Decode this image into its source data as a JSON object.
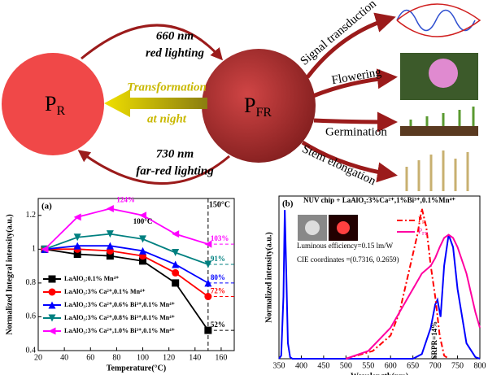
{
  "diagram": {
    "nodes": [
      {
        "main": "P",
        "sub": "R"
      },
      {
        "main": "P",
        "sub": "FR"
      }
    ],
    "transitions": [
      {
        "line1": "660 nm",
        "line2": "red lighting"
      },
      {
        "line1": "Transformation",
        "line2": "at night"
      },
      {
        "line1": "730 nm",
        "line2": "far-red lighting"
      }
    ],
    "outputs": [
      "Signal transduction",
      "Flowering",
      "Germination",
      "Stem elongation"
    ]
  },
  "chart_data": [
    {
      "type": "line",
      "label": "(a)",
      "xlabel": "Temperature(°C)",
      "ylabel": "Normalized Integral intensity(a.u.)",
      "xlim": [
        20,
        170
      ],
      "ylim": [
        0.4,
        1.3
      ],
      "xticks": [
        20,
        40,
        60,
        80,
        100,
        120,
        140,
        160
      ],
      "yticks": [
        0.4,
        0.6,
        0.8,
        1.0,
        1.2
      ],
      "vline": {
        "x": 150,
        "label": "150°C"
      },
      "annotations": [
        {
          "x": 100,
          "text": "100°C"
        }
      ],
      "series": [
        {
          "name": "LaAlO₃:0.1% Mn⁴⁺",
          "color": "#000000",
          "marker": "square",
          "x": [
            25,
            50,
            75,
            100,
            125,
            150
          ],
          "values": [
            1.0,
            0.97,
            0.96,
            0.93,
            0.8,
            0.52
          ],
          "value_labels": [
            null,
            null,
            null,
            null,
            null,
            "52%"
          ]
        },
        {
          "name": "LaAlO₃:3% Ca²⁺,0.1% Mn⁴⁺",
          "color": "#ff0000",
          "marker": "circle",
          "x": [
            25,
            50,
            75,
            100,
            125,
            150
          ],
          "values": [
            1.0,
            1.0,
            0.99,
            0.96,
            0.86,
            0.72
          ],
          "value_labels": [
            null,
            null,
            null,
            null,
            null,
            "72%"
          ]
        },
        {
          "name": "LaAlO₃:3% Ca²⁺,0.6% Bi³⁺,0.1% Mn⁴⁺",
          "color": "#0000ff",
          "marker": "triangle-up",
          "x": [
            25,
            50,
            75,
            100,
            125,
            150
          ],
          "values": [
            1.0,
            1.02,
            1.02,
            0.99,
            0.91,
            0.8
          ],
          "value_labels": [
            null,
            null,
            null,
            null,
            null,
            "80%"
          ]
        },
        {
          "name": "LaAlO₃:3% Ca²⁺,0.8% Bi³⁺,0.1% Mn⁴⁺",
          "color": "#008080",
          "marker": "triangle-down",
          "x": [
            25,
            50,
            75,
            100,
            125,
            150
          ],
          "values": [
            1.0,
            1.07,
            1.09,
            1.06,
            0.98,
            0.91
          ],
          "value_labels": [
            null,
            null,
            null,
            null,
            null,
            "91%"
          ]
        },
        {
          "name": "LaAlO₃:3% Ca²⁺,1.0% Bi³⁺,0.1% Mn⁴⁺",
          "color": "#ff00ff",
          "marker": "triangle-left",
          "x": [
            25,
            50,
            75,
            100,
            125,
            150
          ],
          "values": [
            1.0,
            1.19,
            1.24,
            1.2,
            1.09,
            1.03
          ],
          "value_labels": [
            null,
            null,
            "124%",
            null,
            null,
            "103%"
          ]
        }
      ]
    },
    {
      "type": "line",
      "label": "(b)",
      "title": "NUV chip + LaAlO₃:3%Ca²⁺,1%Bi³⁺,0.1%Mn⁴⁺",
      "xlabel": "Wavelength(nm)",
      "ylabel": "Normalized intensity(a.u.)",
      "xlim": [
        350,
        800
      ],
      "ylim": [
        0,
        1.05
      ],
      "xticks": [
        350,
        400,
        450,
        500,
        550,
        600,
        650,
        700,
        750,
        800
      ],
      "yticks": [],
      "notes": [
        "Luminous efficiency=0.15 lm/W",
        "CIE coordinates =(0.7316, 0.2659)"
      ],
      "annotations": [
        {
          "x": 700,
          "text": "SRPR=14%"
        }
      ],
      "series": [
        {
          "color": "#0000ff",
          "x": [
            350,
            355,
            360,
            363,
            366,
            370,
            375,
            380,
            400,
            600,
            650,
            670,
            690,
            700,
            705,
            712,
            720,
            730,
            740,
            750,
            770,
            790,
            800
          ],
          "values": [
            0,
            0.02,
            0.4,
            0.96,
            0.6,
            0.1,
            0.01,
            0,
            0,
            0,
            0,
            0.03,
            0.2,
            0.35,
            0.38,
            0.27,
            0.6,
            0.8,
            0.72,
            0.45,
            0.1,
            0.01,
            0
          ]
        },
        {
          "name": {
            "main": "P",
            "sub": "R"
          },
          "color": "#ff0000",
          "dash": "dashdot",
          "x": [
            500,
            560,
            600,
            620,
            640,
            660,
            670,
            680,
            690,
            700,
            710,
            720,
            730
          ],
          "values": [
            0,
            0.05,
            0.15,
            0.3,
            0.55,
            0.8,
            0.97,
            0.85,
            0.6,
            0.4,
            0.15,
            0.02,
            0
          ]
        },
        {
          "name": {
            "main": "P",
            "sub": "FR"
          },
          "color": "#ff00a0",
          "x": [
            500,
            550,
            600,
            640,
            670,
            690,
            700,
            710,
            720,
            730,
            740,
            750,
            770,
            790,
            800
          ],
          "values": [
            0,
            0.05,
            0.2,
            0.4,
            0.55,
            0.6,
            0.65,
            0.72,
            0.78,
            0.8,
            0.78,
            0.72,
            0.55,
            0.3,
            0.2
          ]
        }
      ]
    }
  ]
}
